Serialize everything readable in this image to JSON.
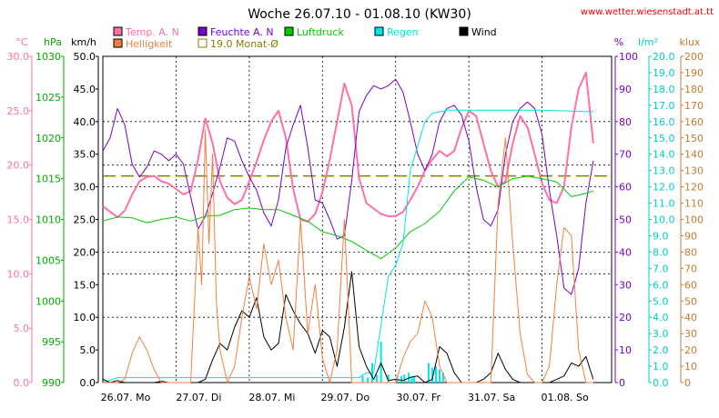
{
  "chart_data": {
    "type": "line",
    "title": "Woche 26.07.10 - 01.08.10 (KW30)",
    "source": "www.wetter.wiesenstadt.at.tt",
    "days": [
      "26.07. Mo",
      "27.07. Di",
      "28.07. Mi",
      "29.07. Do",
      "30.07. Fr",
      "31.07. Sa",
      "01.08. So"
    ],
    "grid": true,
    "axes": [
      {
        "id": "temp",
        "unit": "°C",
        "side": "left",
        "color": "#ff6fa8",
        "range": [
          0,
          30
        ],
        "step": 5,
        "labels": [
          "0.0",
          "5.0",
          "10.0",
          "15.0",
          "20.0",
          "25.0",
          "30.0"
        ]
      },
      {
        "id": "press",
        "unit": "hPa",
        "side": "left",
        "color": "#00aa00",
        "range": [
          990,
          1030
        ],
        "step": 5,
        "labels": [
          "990",
          "995",
          "1000",
          "1005",
          "1010",
          "1015",
          "1020",
          "1025",
          "1030"
        ]
      },
      {
        "id": "wind",
        "unit": "km/h",
        "side": "left",
        "color": "#000000",
        "range": [
          0,
          50
        ],
        "step": 5,
        "labels": [
          "0.0",
          "5.0",
          "10.0",
          "15.0",
          "20.0",
          "25.0",
          "30.0",
          "35.0",
          "40.0",
          "45.0",
          "50.0"
        ]
      },
      {
        "id": "hum",
        "unit": "%",
        "side": "right",
        "color": "#7700cc",
        "range": [
          0,
          100
        ],
        "step": 10,
        "labels": [
          "0",
          "10",
          "20",
          "30",
          "40",
          "50",
          "60",
          "70",
          "80",
          "90",
          "100"
        ]
      },
      {
        "id": "rain",
        "unit": "l/m²",
        "side": "right",
        "color": "#00cccc",
        "range": [
          0,
          20
        ],
        "step": 1,
        "labels": [
          "0.0",
          "1.0",
          "2.0",
          "3.0",
          "4.0",
          "5.0",
          "6.0",
          "7.0",
          "8.0",
          "9.0",
          "10.0",
          "11.0",
          "12.0",
          "13.0",
          "14.0",
          "15.0",
          "16.0",
          "17.0",
          "18.0",
          "19.0",
          "20.0"
        ]
      },
      {
        "id": "lux",
        "unit": "klux",
        "side": "right",
        "color": "#c87830",
        "range": [
          0,
          200
        ],
        "step": 10,
        "labels": [
          "0",
          "10",
          "20",
          "30",
          "40",
          "50",
          "60",
          "70",
          "80",
          "90",
          "100",
          "110",
          "120",
          "130",
          "140",
          "150",
          "160",
          "170",
          "180",
          "190",
          "200"
        ]
      }
    ],
    "legend": [
      {
        "label": "Temp. A. N",
        "color": "#ff6fa8"
      },
      {
        "label": "Feuchte A. N",
        "color": "#7700cc"
      },
      {
        "label": "Luftdruck",
        "color": "#00cc00"
      },
      {
        "label": "Regen",
        "color": "#00e5e5"
      },
      {
        "label": "Wind",
        "color": "#000000"
      },
      {
        "label": "Helligkeit",
        "color": "#f08040"
      },
      {
        "label": "19.0 Monat-Ø",
        "color": "#808000"
      }
    ],
    "monthly_avg_temp": 19.0,
    "series": [
      {
        "name": "Temp. A. N",
        "axis": "temp",
        "color": "#ff6fa8",
        "width": 2,
        "x": [
          0,
          0.1,
          0.2,
          0.3,
          0.4,
          0.5,
          0.6,
          0.7,
          0.8,
          0.9,
          1.0,
          1.1,
          1.2,
          1.3,
          1.4,
          1.5,
          1.6,
          1.7,
          1.8,
          1.9,
          2.0,
          2.1,
          2.2,
          2.3,
          2.4,
          2.5,
          2.6,
          2.7,
          2.8,
          2.9,
          3.0,
          3.1,
          3.2,
          3.3,
          3.4,
          3.5,
          3.6,
          3.7,
          3.8,
          3.9,
          4.0,
          4.1,
          4.2,
          4.3,
          4.4,
          4.5,
          4.6,
          4.7,
          4.8,
          4.9,
          5.0,
          5.1,
          5.2,
          5.3,
          5.4,
          5.5,
          5.6,
          5.7,
          5.8,
          5.9,
          6.0,
          6.1,
          6.2,
          6.3,
          6.4,
          6.5,
          6.6,
          6.7
        ],
        "y": [
          16.2,
          15.7,
          15.2,
          15.8,
          17.3,
          18.5,
          18.9,
          19.0,
          18.5,
          18.3,
          17.8,
          17.3,
          17.6,
          20.5,
          24.3,
          22.0,
          18.5,
          17.0,
          16.4,
          16.8,
          18.5,
          20.3,
          22.3,
          24.0,
          25.0,
          22.5,
          17.8,
          15.0,
          14.8,
          15.5,
          17.5,
          20.5,
          24.0,
          27.5,
          25.5,
          18.8,
          16.5,
          16.0,
          15.5,
          15.3,
          15.3,
          15.7,
          16.8,
          18.0,
          19.5,
          20.5,
          21.3,
          20.8,
          21.3,
          23.4,
          25.0,
          24.5,
          22.0,
          19.5,
          18.0,
          18.5,
          22.0,
          24.5,
          23.5,
          21.0,
          18.3,
          16.8,
          16.5,
          18.0,
          23.5,
          27.0,
          28.5,
          22.0
        ]
      },
      {
        "name": "Feuchte A. N",
        "axis": "hum",
        "color": "#7700cc",
        "width": 1,
        "x": [
          0,
          0.1,
          0.2,
          0.3,
          0.4,
          0.5,
          0.6,
          0.7,
          0.8,
          0.9,
          1.0,
          1.1,
          1.2,
          1.3,
          1.4,
          1.5,
          1.6,
          1.7,
          1.8,
          1.9,
          2.0,
          2.1,
          2.2,
          2.3,
          2.4,
          2.5,
          2.6,
          2.7,
          2.8,
          2.9,
          3.0,
          3.1,
          3.2,
          3.3,
          3.4,
          3.5,
          3.6,
          3.7,
          3.8,
          3.9,
          4.0,
          4.1,
          4.2,
          4.3,
          4.4,
          4.5,
          4.6,
          4.7,
          4.8,
          4.9,
          5.0,
          5.1,
          5.2,
          5.3,
          5.4,
          5.5,
          5.6,
          5.7,
          5.8,
          5.9,
          6.0,
          6.1,
          6.2,
          6.3,
          6.4,
          6.5,
          6.6,
          6.7
        ],
        "y": [
          71,
          75,
          84,
          79,
          67,
          63,
          66,
          71,
          70,
          68,
          70,
          67,
          57,
          47,
          51,
          58,
          66,
          75,
          74,
          68,
          63,
          59,
          52,
          48,
          56,
          72,
          79,
          85,
          72,
          56,
          55,
          50,
          44,
          45,
          62,
          83,
          88,
          91,
          90,
          91,
          93,
          89,
          80,
          70,
          65,
          70,
          80,
          84,
          85,
          82,
          74,
          60,
          50,
          48,
          53,
          70,
          80,
          84,
          86,
          84,
          76,
          59,
          45,
          29,
          27,
          35,
          55,
          68
        ]
      },
      {
        "name": "Luftdruck",
        "axis": "press",
        "color": "#00cc00",
        "width": 1,
        "x": [
          0,
          0.2,
          0.4,
          0.6,
          0.8,
          1.0,
          1.2,
          1.4,
          1.6,
          1.8,
          2.0,
          2.2,
          2.4,
          2.6,
          2.8,
          3.0,
          3.2,
          3.4,
          3.6,
          3.8,
          4.0,
          4.2,
          4.4,
          4.6,
          4.8,
          5.0,
          5.2,
          5.4,
          5.6,
          5.8,
          6.0,
          6.2,
          6.4,
          6.6,
          6.7
        ],
        "y": [
          1009.8,
          1010.3,
          1010.2,
          1009.6,
          1010.0,
          1010.3,
          1009.8,
          1010.4,
          1010.5,
          1011.2,
          1011.4,
          1011.2,
          1011.2,
          1010.5,
          1009.8,
          1008.5,
          1008.0,
          1007.3,
          1006.2,
          1005.2,
          1006.5,
          1008.5,
          1009.5,
          1011.0,
          1013.5,
          1015.2,
          1014.8,
          1014.0,
          1015.0,
          1015.3,
          1015.0,
          1014.6,
          1012.8,
          1013.2,
          1013.5
        ]
      },
      {
        "name": "Regen",
        "axis": "rain",
        "color": "#00e5e5",
        "width": 1,
        "x": [
          0,
          0.2,
          3.5,
          3.6,
          3.7,
          3.9,
          4.0,
          4.1,
          4.2,
          4.3,
          4.4,
          4.5,
          4.6,
          4.7,
          5.0,
          6.0,
          6.7
        ],
        "y": [
          0,
          0.3,
          0.3,
          0.6,
          0.6,
          6.5,
          7.2,
          8.5,
          13.0,
          14.5,
          16.0,
          16.5,
          16.6,
          16.7,
          16.7,
          16.7,
          16.6
        ]
      },
      {
        "name": "Regen-Menge",
        "axis": "rain",
        "color": "#00e5e5",
        "bars": true,
        "x": [
          3.55,
          3.62,
          3.68,
          3.74,
          3.8,
          3.9,
          4.02,
          4.08,
          4.12,
          4.18,
          4.22,
          4.25,
          4.45,
          4.5,
          4.55,
          4.6,
          4.65
        ],
        "y": [
          0.4,
          0.3,
          1.2,
          0.5,
          2.5,
          0.5,
          0.4,
          0.4,
          0.5,
          0.6,
          0.3,
          0.4,
          1.2,
          0.9,
          1.0,
          0.8,
          0.6
        ]
      },
      {
        "name": "Wind",
        "axis": "wind",
        "color": "#000000",
        "width": 1,
        "x": [
          0,
          0.1,
          0.2,
          0.3,
          0.4,
          0.5,
          0.6,
          0.7,
          0.8,
          0.9,
          1.0,
          1.1,
          1.2,
          1.3,
          1.4,
          1.5,
          1.6,
          1.7,
          1.8,
          1.9,
          2.0,
          2.1,
          2.2,
          2.3,
          2.4,
          2.5,
          2.6,
          2.7,
          2.8,
          2.9,
          3.0,
          3.1,
          3.2,
          3.3,
          3.4,
          3.5,
          3.6,
          3.7,
          3.8,
          3.9,
          4.0,
          4.1,
          4.2,
          4.3,
          4.4,
          4.5,
          4.6,
          4.7,
          4.8,
          4.9,
          5.0,
          5.1,
          5.2,
          5.3,
          5.4,
          5.5,
          5.6,
          5.7,
          5.8,
          5.9,
          6.0,
          6.1,
          6.2,
          6.3,
          6.4,
          6.5,
          6.6,
          6.7
        ],
        "y": [
          0.5,
          0,
          0.3,
          0,
          0,
          0,
          0,
          0,
          0.2,
          0,
          0,
          0,
          0,
          0,
          0.5,
          3.5,
          6.0,
          5.0,
          8.5,
          11.0,
          10.0,
          13.0,
          7.0,
          5.0,
          6.0,
          13.5,
          11.0,
          9.0,
          7.5,
          4.5,
          8.0,
          7.0,
          2.5,
          8.5,
          17.0,
          5.5,
          2.5,
          0.5,
          3.0,
          0.3,
          0.5,
          0.3,
          0.8,
          1.0,
          0,
          0.5,
          5.5,
          4.5,
          1.5,
          0,
          0,
          0,
          0.5,
          1.5,
          4.5,
          2.0,
          0.5,
          0,
          0,
          0,
          0,
          0,
          0.5,
          1.0,
          3.0,
          2.5,
          4.0,
          0.5
        ]
      },
      {
        "name": "Helligkeit",
        "axis": "lux",
        "color": "#f08040",
        "width": 1,
        "x": [
          0,
          0.1,
          0.2,
          0.3,
          0.4,
          0.5,
          0.6,
          0.7,
          0.8,
          0.9,
          1.0,
          1.1,
          1.2,
          1.3,
          1.35,
          1.4,
          1.45,
          1.5,
          1.55,
          1.6,
          1.7,
          1.8,
          1.9,
          2.0,
          2.1,
          2.2,
          2.3,
          2.4,
          2.5,
          2.6,
          2.7,
          2.8,
          2.9,
          3.0,
          3.1,
          3.2,
          3.3,
          3.4,
          3.5,
          3.6,
          3.7,
          3.8,
          3.9,
          4.0,
          4.1,
          4.2,
          4.3,
          4.4,
          4.5,
          4.6,
          4.7,
          4.8,
          4.9,
          5.0,
          5.1,
          5.2,
          5.3,
          5.4,
          5.5,
          5.6,
          5.7,
          5.8,
          5.9,
          6.0,
          6.1,
          6.2,
          6.3,
          6.4,
          6.5,
          6.6,
          6.7
        ],
        "y": [
          0,
          0,
          0,
          2,
          18,
          28,
          20,
          8,
          0,
          0,
          0,
          0,
          0,
          95,
          60,
          155,
          85,
          140,
          50,
          20,
          0,
          10,
          40,
          65,
          45,
          85,
          60,
          75,
          40,
          20,
          100,
          30,
          60,
          15,
          0,
          20,
          100,
          0,
          0,
          0,
          0,
          0,
          0,
          0,
          15,
          25,
          30,
          50,
          40,
          10,
          0,
          0,
          0,
          0,
          0,
          0,
          0,
          110,
          150,
          85,
          30,
          5,
          0,
          0,
          10,
          60,
          95,
          90,
          20,
          0,
          0
        ]
      }
    ]
  }
}
